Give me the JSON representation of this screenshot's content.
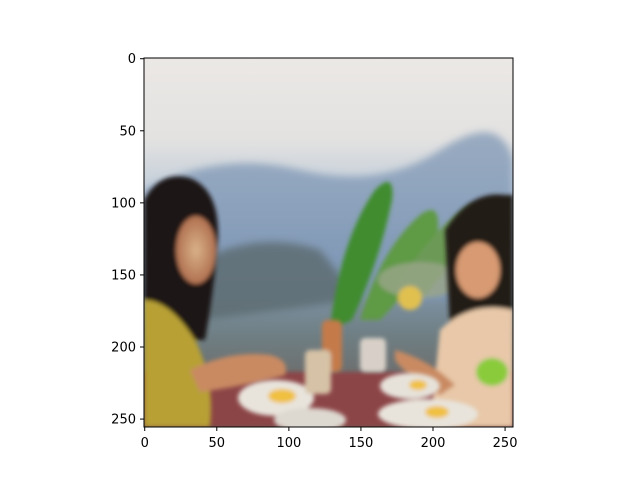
{
  "chart_data": {
    "type": "heatmap",
    "title": "",
    "xlabel": "",
    "ylabel": "",
    "image_content": "generated image: two people seated at an outdoor table with plates of food, green plants and blue hills behind",
    "image_size": [
      256,
      256
    ],
    "xlim": [
      0,
      255
    ],
    "ylim": [
      255,
      0
    ],
    "x_ticks": [
      0,
      50,
      100,
      150,
      200,
      250
    ],
    "y_ticks": [
      0,
      50,
      100,
      150,
      200,
      250
    ],
    "grid": false,
    "colors": {
      "sky": "#e9e6e3",
      "haze": "#cfd6de",
      "hills": "#8fa6c2",
      "foliage": "#4f8a3a",
      "hair": "#1e1614",
      "skin": "#c98a62",
      "shirt_left": "#b8a035",
      "table": "#9a4a4a",
      "plate": "#e8e4dc",
      "yolk": "#f0c040"
    }
  }
}
